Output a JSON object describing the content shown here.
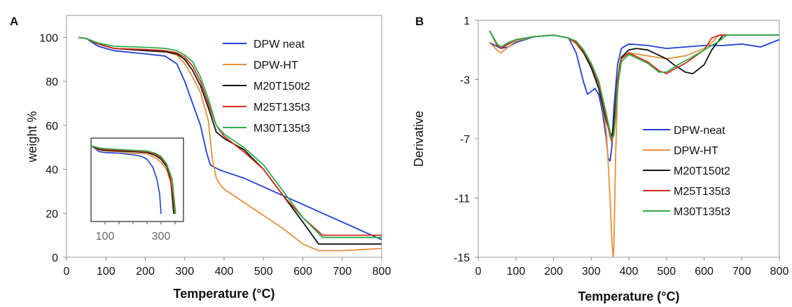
{
  "colors": {
    "blue": "#1f3fd6",
    "orange": "#e8903a",
    "black": "#111111",
    "red": "#d62a1f",
    "green": "#2bb04a"
  },
  "chart_data": [
    {
      "panel_label": "A",
      "type": "line",
      "xlabel": "Temperature (°C)",
      "ylabel": "weight %",
      "xlim": [
        0,
        800
      ],
      "ylim": [
        0,
        110
      ],
      "xticks": [
        "0",
        "100",
        "200",
        "300",
        "400",
        "500",
        "600",
        "700",
        "800"
      ],
      "yticks": [
        "0",
        "20",
        "40",
        "60",
        "80",
        "100"
      ],
      "legend_position": "top-right",
      "series": [
        {
          "name": "DPW neat",
          "color": "#1f3fd6",
          "x": [
            30,
            50,
            80,
            120,
            200,
            250,
            280,
            300,
            320,
            340,
            355,
            365,
            375,
            385,
            400,
            450,
            500,
            550,
            600,
            650,
            700,
            750,
            800
          ],
          "y": [
            100,
            99.5,
            96,
            94,
            92.5,
            91.5,
            88,
            80,
            70,
            60,
            48,
            42,
            41,
            40,
            39,
            36,
            32,
            28,
            24,
            20,
            16,
            12,
            8
          ]
        },
        {
          "name": "DPW-HT",
          "color": "#e8903a",
          "x": [
            30,
            50,
            80,
            120,
            200,
            250,
            280,
            300,
            320,
            340,
            360,
            370,
            380,
            390,
            400,
            450,
            500,
            550,
            600,
            640,
            700,
            800
          ],
          "y": [
            100,
            99.5,
            97,
            95,
            94,
            93.5,
            92,
            88,
            82,
            75,
            62,
            45,
            36,
            33,
            31,
            25,
            19,
            13,
            6,
            3,
            3,
            4
          ]
        },
        {
          "name": "M20T150t2",
          "color": "#111111",
          "x": [
            30,
            50,
            80,
            120,
            200,
            250,
            280,
            300,
            320,
            340,
            360,
            380,
            400,
            450,
            500,
            550,
            600,
            640,
            700,
            800
          ],
          "y": [
            100,
            99.5,
            97,
            95,
            94,
            93.5,
            92.5,
            90,
            85,
            78,
            68,
            57,
            54,
            49,
            40,
            28,
            16,
            6,
            6,
            6
          ]
        },
        {
          "name": "M25T135t3",
          "color": "#d62a1f",
          "x": [
            30,
            50,
            80,
            120,
            200,
            250,
            280,
            300,
            320,
            340,
            360,
            380,
            400,
            450,
            500,
            550,
            600,
            650,
            700,
            800
          ],
          "y": [
            100,
            99.5,
            97,
            95,
            94.5,
            94,
            93,
            91,
            87,
            80,
            70,
            60,
            55,
            48,
            40,
            28,
            18,
            10,
            10,
            10
          ]
        },
        {
          "name": "M30T135t3",
          "color": "#2bb04a",
          "x": [
            30,
            50,
            80,
            120,
            200,
            250,
            280,
            300,
            320,
            340,
            360,
            380,
            400,
            450,
            500,
            550,
            600,
            650,
            700,
            800
          ],
          "y": [
            100,
            99.5,
            97.5,
            96,
            95.5,
            95,
            94,
            92,
            89,
            82,
            72,
            60,
            56,
            50,
            42,
            30,
            18,
            9,
            9,
            9
          ]
        }
      ],
      "inset": {
        "xlim": [
          50,
          380
        ],
        "xticks": [
          "100",
          "300"
        ],
        "series": [
          {
            "color": "#1f3fd6",
            "x": [
              50,
              80,
              100,
              150,
              200,
              230,
              250,
              270,
              285,
              295,
              300
            ],
            "y": [
              100,
              96,
              95.5,
              95,
              94,
              93,
              91,
              86,
              78,
              68,
              55
            ]
          },
          {
            "color": "#e8903a",
            "x": [
              50,
              80,
              100,
              150,
              200,
              250,
              280,
              300,
              320,
              335,
              345
            ],
            "y": [
              100,
              97,
              96.5,
              96,
              95,
              94.5,
              92,
              89,
              84,
              75,
              55
            ]
          },
          {
            "color": "#111111",
            "x": [
              50,
              80,
              100,
              150,
              200,
              250,
              280,
              300,
              320,
              335,
              345
            ],
            "y": [
              100,
              97.5,
              97,
              96.5,
              96,
              95.5,
              93.5,
              91,
              86,
              77,
              55
            ]
          },
          {
            "color": "#d62a1f",
            "x": [
              50,
              80,
              100,
              150,
              200,
              250,
              280,
              300,
              320,
              335,
              350
            ],
            "y": [
              100,
              98,
              97.5,
              97,
              96.5,
              96,
              94.5,
              92,
              87,
              78,
              55
            ]
          },
          {
            "color": "#2bb04a",
            "x": [
              50,
              80,
              100,
              150,
              200,
              250,
              280,
              300,
              320,
              340,
              352
            ],
            "y": [
              100,
              98.5,
              98,
              97.5,
              97,
              96.5,
              95,
              93,
              88,
              78,
              55
            ]
          }
        ]
      }
    },
    {
      "panel_label": "B",
      "type": "line",
      "xlabel": "Temperature (°C)",
      "ylabel": "Derivative",
      "xlim": [
        0,
        800
      ],
      "ylim": [
        -15,
        1
      ],
      "xticks": [
        "0",
        "100",
        "200",
        "300",
        "400",
        "500",
        "600",
        "700",
        "800"
      ],
      "yticks": [
        "1",
        "-3",
        "-7",
        "-11",
        "-15"
      ],
      "legend_position": "bottom-right",
      "series": [
        {
          "name": "DPW-neat",
          "color": "#1f3fd6",
          "x": [
            30,
            45,
            60,
            80,
            100,
            150,
            200,
            240,
            260,
            280,
            290,
            300,
            310,
            320,
            330,
            340,
            345,
            350,
            355,
            360,
            370,
            380,
            400,
            450,
            500,
            550,
            600,
            650,
            700,
            750,
            800
          ],
          "y": [
            -0.5,
            -0.7,
            -0.9,
            -0.8,
            -0.5,
            -0.1,
            0,
            -0.2,
            -1.2,
            -3.2,
            -4.0,
            -3.8,
            -3.6,
            -4.0,
            -5.2,
            -7.0,
            -8.3,
            -8.5,
            -7.5,
            -5.0,
            -2.0,
            -0.9,
            -0.6,
            -0.7,
            -0.9,
            -0.8,
            -0.7,
            -0.7,
            -0.6,
            -0.8,
            -0.3
          ]
        },
        {
          "name": "DPW-HT",
          "color": "#e8903a",
          "x": [
            30,
            50,
            60,
            80,
            100,
            150,
            200,
            240,
            260,
            280,
            300,
            320,
            330,
            340,
            345,
            350,
            355,
            358,
            360,
            362,
            365,
            370,
            375,
            380,
            400,
            450,
            500,
            550,
            600,
            620,
            640,
            800
          ],
          "y": [
            -0.5,
            -1.0,
            -1.2,
            -0.8,
            -0.4,
            -0.1,
            0,
            -0.2,
            -0.6,
            -1.2,
            -2.0,
            -3.2,
            -4.5,
            -6.5,
            -8.5,
            -11.0,
            -13.8,
            -15.0,
            -14.5,
            -12.0,
            -8.0,
            -4.0,
            -2.0,
            -1.5,
            -1.2,
            -1.4,
            -1.6,
            -1.4,
            -0.9,
            -0.5,
            0,
            0
          ]
        },
        {
          "name": "M20T150t2",
          "color": "#111111",
          "x": [
            30,
            50,
            60,
            80,
            100,
            150,
            200,
            240,
            260,
            280,
            300,
            320,
            340,
            350,
            355,
            360,
            370,
            380,
            400,
            420,
            450,
            500,
            520,
            550,
            570,
            600,
            620,
            650,
            700,
            800
          ],
          "y": [
            0.3,
            -0.6,
            -0.8,
            -0.6,
            -0.3,
            -0.1,
            0,
            -0.2,
            -0.5,
            -1.2,
            -2.2,
            -3.6,
            -5.8,
            -6.6,
            -6.8,
            -6.0,
            -3.0,
            -1.5,
            -1.0,
            -0.9,
            -1.0,
            -1.6,
            -2.0,
            -2.5,
            -2.6,
            -2.0,
            -1.0,
            0,
            0,
            0
          ]
        },
        {
          "name": "M25T135t3",
          "color": "#d62a1f",
          "x": [
            30,
            50,
            60,
            80,
            100,
            150,
            200,
            240,
            260,
            280,
            300,
            320,
            340,
            350,
            355,
            360,
            365,
            370,
            380,
            400,
            450,
            480,
            500,
            520,
            550,
            600,
            620,
            640,
            800
          ],
          "y": [
            0.3,
            -0.7,
            -0.9,
            -0.6,
            -0.3,
            -0.1,
            0,
            -0.2,
            -0.5,
            -1.1,
            -2.0,
            -3.3,
            -5.6,
            -6.8,
            -7.2,
            -6.6,
            -5.0,
            -3.0,
            -1.6,
            -1.2,
            -1.8,
            -2.4,
            -2.6,
            -2.3,
            -1.9,
            -1.0,
            -0.2,
            0,
            0
          ]
        },
        {
          "name": "M30T135t3",
          "color": "#2bb04a",
          "x": [
            30,
            50,
            60,
            80,
            100,
            150,
            200,
            240,
            260,
            280,
            300,
            320,
            340,
            350,
            355,
            360,
            365,
            370,
            380,
            400,
            450,
            480,
            500,
            530,
            560,
            600,
            640,
            660,
            680,
            800
          ],
          "y": [
            0.3,
            -0.6,
            -0.8,
            -0.5,
            -0.3,
            -0.1,
            0,
            -0.2,
            -0.4,
            -1.0,
            -1.9,
            -3.1,
            -5.3,
            -6.5,
            -7.0,
            -6.8,
            -5.5,
            -3.5,
            -1.8,
            -1.3,
            -1.9,
            -2.5,
            -2.5,
            -2.0,
            -1.6,
            -1.0,
            -0.4,
            0,
            0,
            0
          ]
        }
      ]
    }
  ]
}
